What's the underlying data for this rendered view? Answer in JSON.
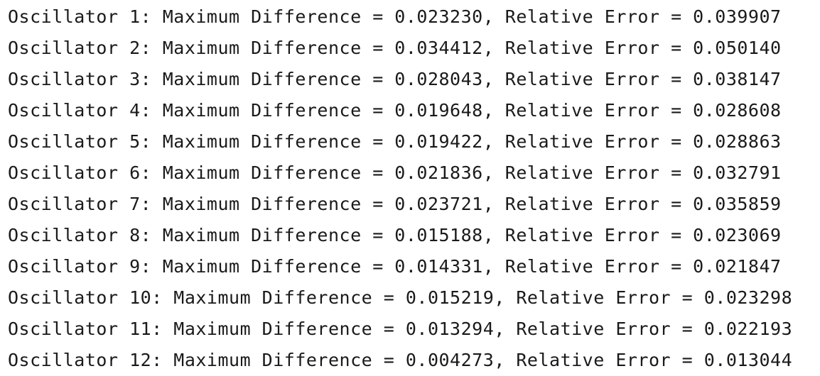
{
  "console": {
    "lines": [
      "Oscillator 1: Maximum Difference = 0.023230, Relative Error = 0.039907",
      "Oscillator 2: Maximum Difference = 0.034412, Relative Error = 0.050140",
      "Oscillator 3: Maximum Difference = 0.028043, Relative Error = 0.038147",
      "Oscillator 4: Maximum Difference = 0.019648, Relative Error = 0.028608",
      "Oscillator 5: Maximum Difference = 0.019422, Relative Error = 0.028863",
      "Oscillator 6: Maximum Difference = 0.021836, Relative Error = 0.032791",
      "Oscillator 7: Maximum Difference = 0.023721, Relative Error = 0.035859",
      "Oscillator 8: Maximum Difference = 0.015188, Relative Error = 0.023069",
      "Oscillator 9: Maximum Difference = 0.014331, Relative Error = 0.021847",
      "Oscillator 10: Maximum Difference = 0.015219, Relative Error = 0.023298",
      "Oscillator 11: Maximum Difference = 0.013294, Relative Error = 0.022193",
      "Oscillator 12: Maximum Difference = 0.004273, Relative Error = 0.013044"
    ]
  }
}
